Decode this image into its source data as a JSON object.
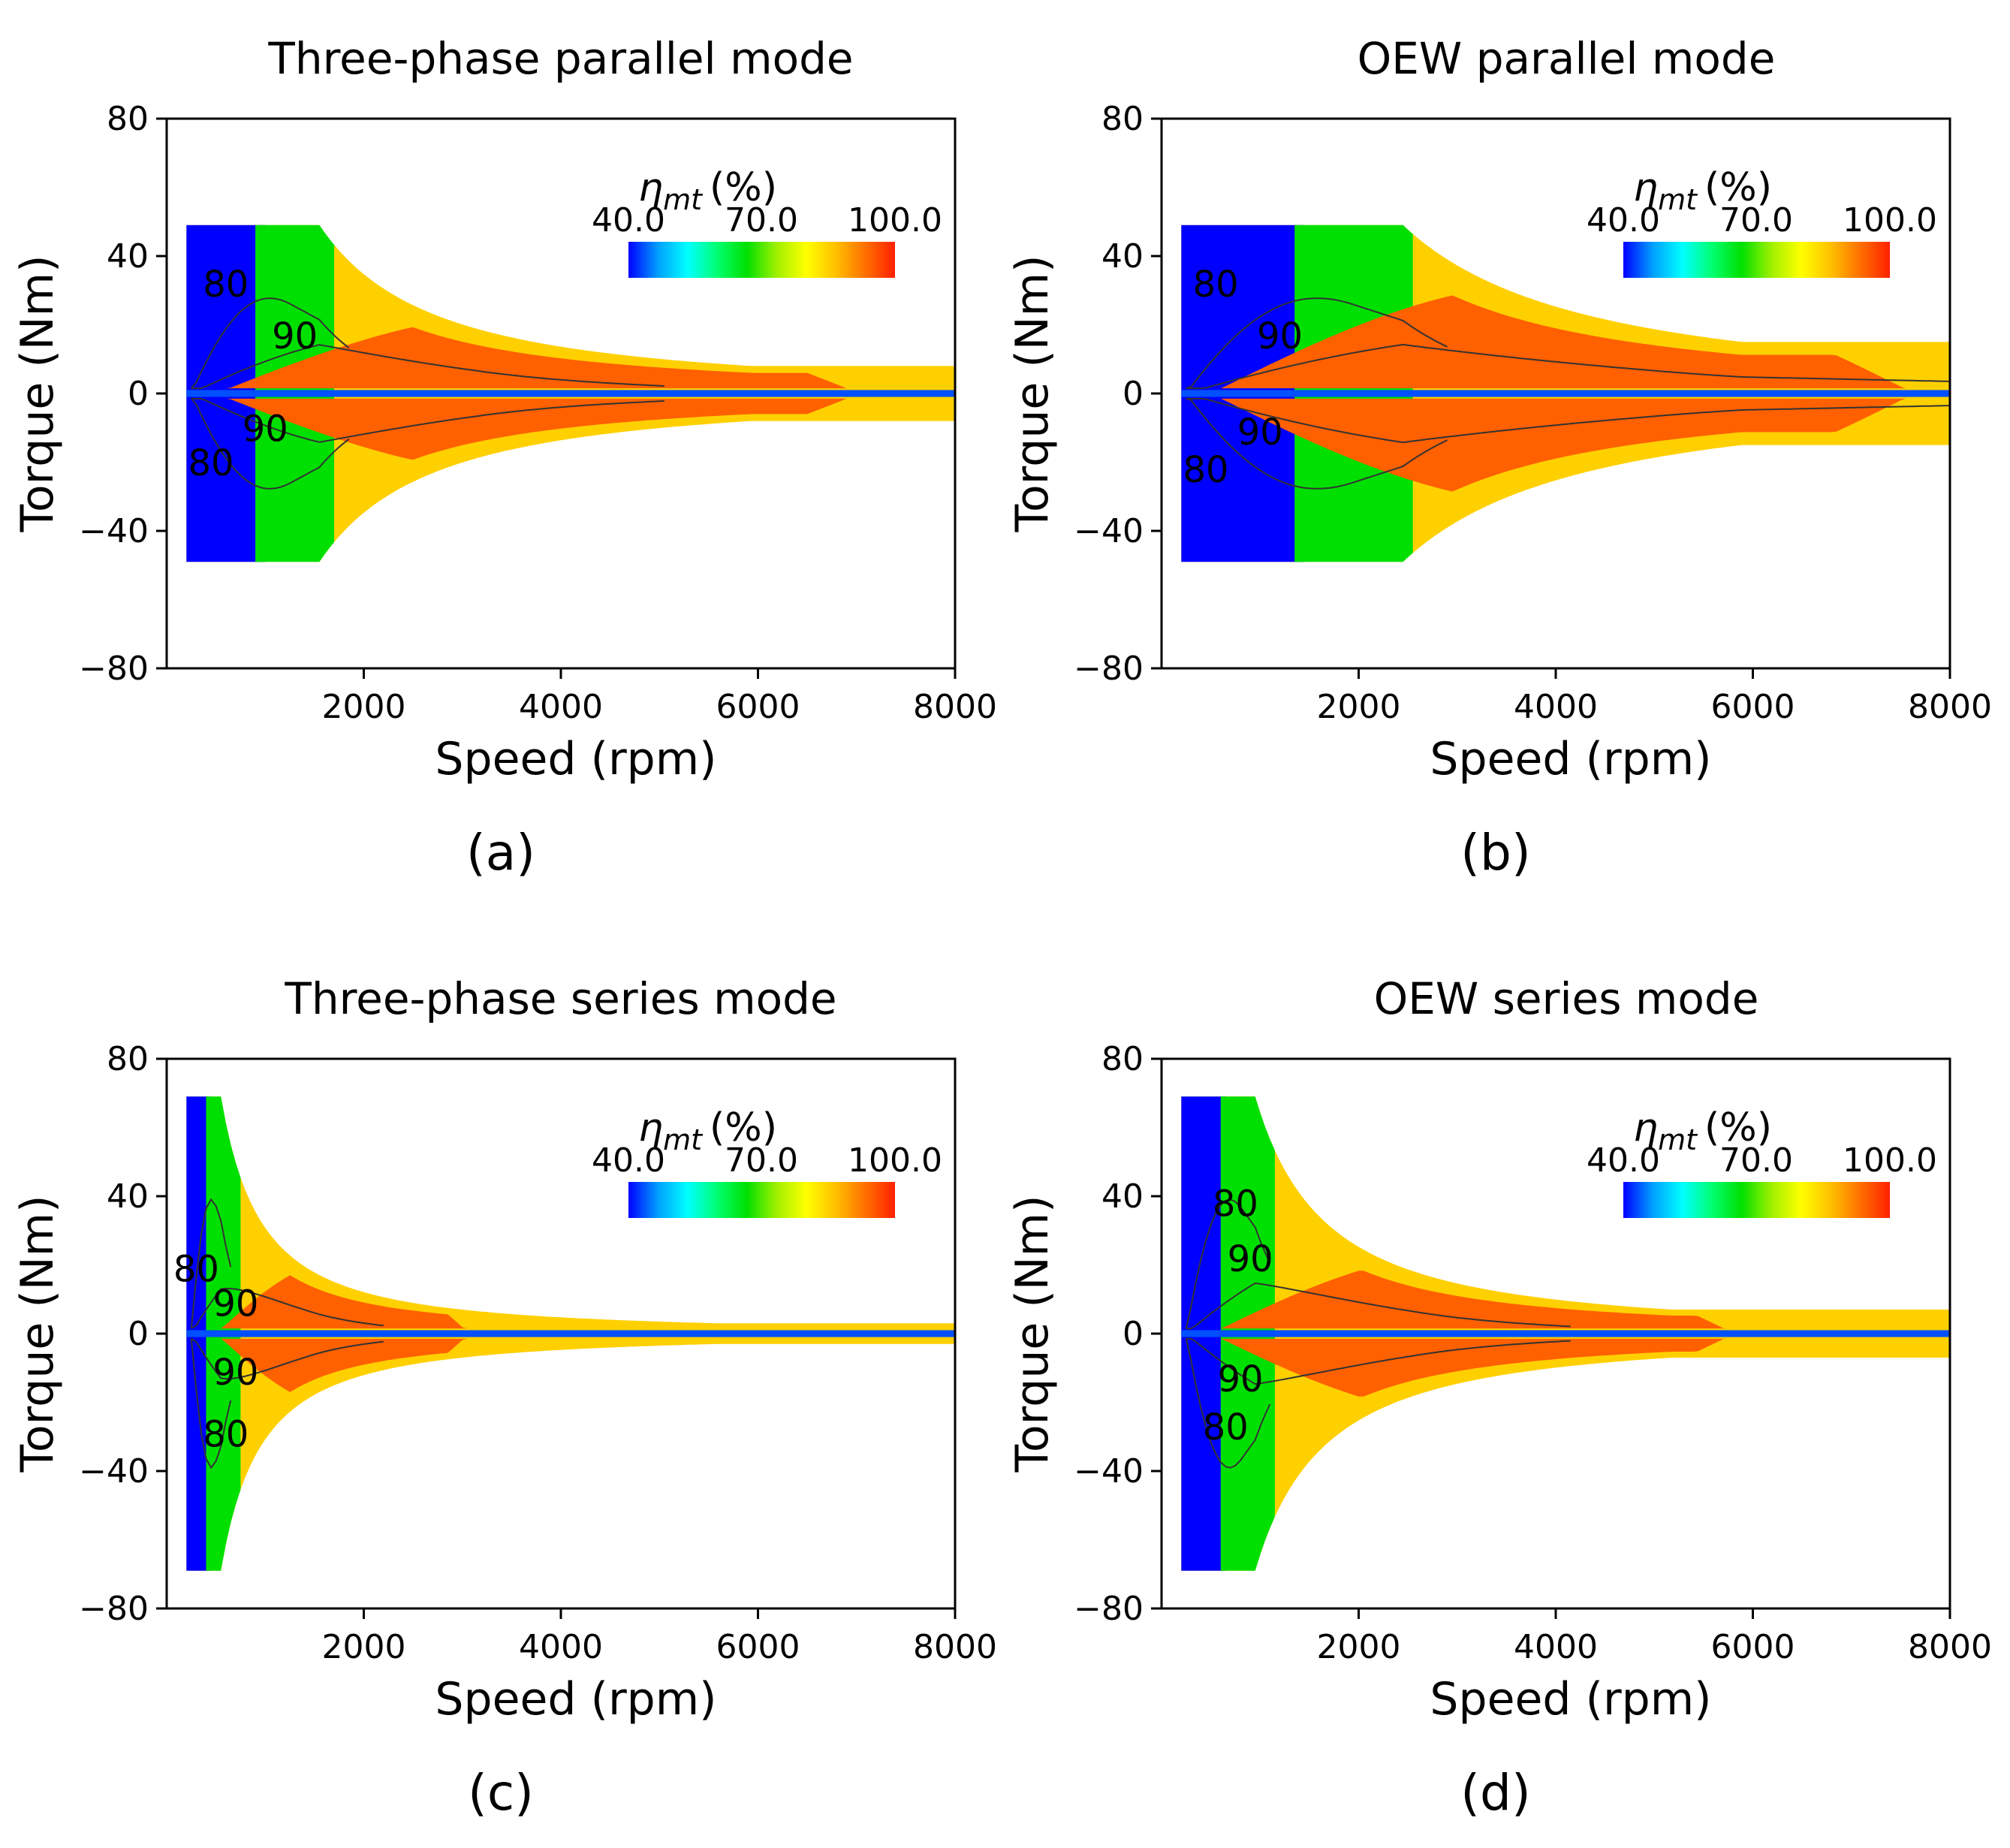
{
  "figure": {
    "background": "#ffffff"
  },
  "colormap": {
    "label_symbol": "η",
    "label_subscript": "mt",
    "label_unit": "(%)",
    "ticks": [
      "40.0",
      "70.0",
      "100.0"
    ],
    "range": [
      40,
      100
    ],
    "stops": [
      "#0000ff",
      "#00a0ff",
      "#00ffff",
      "#00ff70",
      "#00e000",
      "#a0f000",
      "#ffff00",
      "#ffc000",
      "#ff7000",
      "#ff2000"
    ]
  },
  "chart_data": [
    {
      "type": "heatmap",
      "panel_label": "(a)",
      "title": "Three-phase parallel mode",
      "xlabel": "Speed (rpm)",
      "ylabel": "Torque (Nm)",
      "xlim": [
        0,
        8000
      ],
      "ylim": [
        -80,
        80
      ],
      "xticks": [
        2000,
        4000,
        6000,
        8000
      ],
      "yticks": [
        -80,
        -40,
        0,
        40,
        80
      ],
      "tick_labels_x": [
        "2000",
        "4000",
        "6000",
        "8000"
      ],
      "tick_labels_y": [
        "80",
        "40",
        "0",
        "−40",
        "−80"
      ],
      "torque_limit": 49,
      "base_speed": 1550,
      "max_speed_torque": 8,
      "peak_efficiency_region": {
        "speed": 2300,
        "torque": 8
      },
      "contour_levels": [
        80,
        90
      ],
      "contour_labels": [
        {
          "text": "80",
          "speed": 600,
          "torque": 31
        },
        {
          "text": "90",
          "speed": 1300,
          "torque": 16
        },
        {
          "text": "90",
          "speed": 1000,
          "torque": -11
        },
        {
          "text": "80",
          "speed": 450,
          "torque": -21
        }
      ]
    },
    {
      "type": "heatmap",
      "panel_label": "(b)",
      "title": "OEW parallel mode",
      "xlabel": "Speed (rpm)",
      "ylabel": "Torque (Nm)",
      "xlim": [
        0,
        8000
      ],
      "ylim": [
        -80,
        80
      ],
      "xticks": [
        2000,
        4000,
        6000,
        8000
      ],
      "yticks": [
        -80,
        -40,
        0,
        40,
        80
      ],
      "tick_labels_x": [
        "2000",
        "4000",
        "6000",
        "8000"
      ],
      "tick_labels_y": [
        "80",
        "40",
        "0",
        "−40",
        "−80"
      ],
      "torque_limit": 49,
      "base_speed": 2450,
      "max_speed_torque": 15,
      "peak_efficiency_region": {
        "speed": 3800,
        "torque": 12
      },
      "contour_levels": [
        80,
        90
      ],
      "contour_labels": [
        {
          "text": "80",
          "speed": 550,
          "torque": 31
        },
        {
          "text": "90",
          "speed": 1200,
          "torque": 16
        },
        {
          "text": "90",
          "speed": 1000,
          "torque": -12
        },
        {
          "text": "80",
          "speed": 450,
          "torque": -23
        }
      ]
    },
    {
      "type": "heatmap",
      "panel_label": "(c)",
      "title": "Three-phase series mode",
      "xlabel": "Speed (rpm)",
      "ylabel": "Torque (Nm)",
      "xlim": [
        0,
        8000
      ],
      "ylim": [
        -80,
        80
      ],
      "xticks": [
        2000,
        4000,
        6000,
        8000
      ],
      "yticks": [
        -80,
        -40,
        0,
        40,
        80
      ],
      "tick_labels_x": [
        "2000",
        "4000",
        "6000",
        "8000"
      ],
      "tick_labels_y": [
        "80",
        "40",
        "0",
        "−40",
        "−80"
      ],
      "torque_limit": 69,
      "base_speed": 550,
      "max_speed_torque": 3,
      "peak_efficiency_region": {
        "speed": 1000,
        "torque": 7
      },
      "contour_levels": [
        80,
        90
      ],
      "contour_labels": [
        {
          "text": "80",
          "speed": 300,
          "torque": 18
        },
        {
          "text": "90",
          "speed": 700,
          "torque": 8
        },
        {
          "text": "90",
          "speed": 700,
          "torque": -12
        },
        {
          "text": "80",
          "speed": 600,
          "torque": -30
        }
      ]
    },
    {
      "type": "heatmap",
      "panel_label": "(d)",
      "title": "OEW series mode",
      "xlabel": "Speed (rpm)",
      "ylabel": "Torque (Nm)",
      "xlim": [
        0,
        8000
      ],
      "ylim": [
        -80,
        80
      ],
      "xticks": [
        2000,
        4000,
        6000,
        8000
      ],
      "yticks": [
        -80,
        -40,
        0,
        40,
        80
      ],
      "tick_labels_x": [
        "2000",
        "4000",
        "6000",
        "8000"
      ],
      "tick_labels_y": [
        "80",
        "40",
        "0",
        "−40",
        "−80"
      ],
      "torque_limit": 69,
      "base_speed": 950,
      "max_speed_torque": 7,
      "peak_efficiency_region": {
        "speed": 1900,
        "torque": 8
      },
      "contour_levels": [
        80,
        90
      ],
      "contour_labels": [
        {
          "text": "80",
          "speed": 750,
          "torque": 37
        },
        {
          "text": "90",
          "speed": 900,
          "torque": 21
        },
        {
          "text": "90",
          "speed": 800,
          "torque": -14
        },
        {
          "text": "80",
          "speed": 650,
          "torque": -28
        }
      ]
    }
  ]
}
